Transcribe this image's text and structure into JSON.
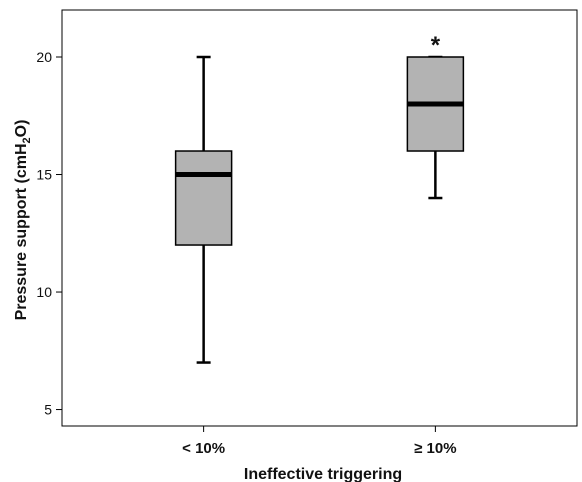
{
  "chart_data": {
    "type": "boxplot",
    "xlabel": "Ineffective triggering",
    "ylabel": {
      "prefix": "Pressure support (cmH",
      "subscript": "2",
      "suffix": "O)"
    },
    "ylim": [
      4.3,
      22
    ],
    "yticks": [
      5,
      10,
      15,
      20
    ],
    "categories": [
      "< 10%",
      "≥ 10%"
    ],
    "boxes": [
      {
        "category": "< 10%",
        "whisker_low": 7,
        "q1": 12,
        "median": 15,
        "q3": 16,
        "whisker_high": 20,
        "annotation": ""
      },
      {
        "category": "≥ 10%",
        "whisker_low": 14,
        "q1": 16,
        "median": 18,
        "q3": 20,
        "whisker_high": 20,
        "annotation": "*"
      }
    ],
    "grid": false,
    "colors": {
      "box_fill": "#b3b3b3",
      "stroke": "#000000",
      "frame": "#000000"
    }
  }
}
